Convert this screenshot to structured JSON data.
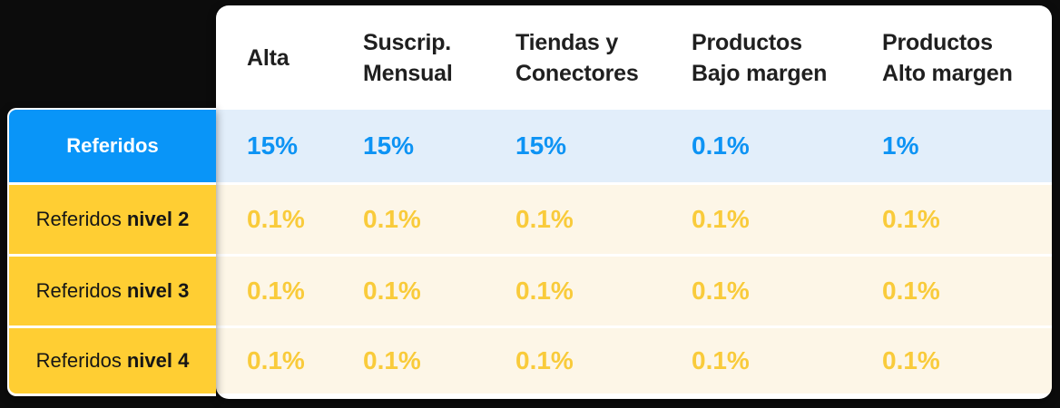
{
  "chart_data": {
    "type": "table",
    "title": "",
    "columns": [
      "Alta",
      "Suscrip. Mensual",
      "Tiendas y Conectores",
      "Productos Bajo margen",
      "Productos Alto margen"
    ],
    "rows": [
      {
        "label": "Referidos",
        "values": [
          "15%",
          "15%",
          "15%",
          "0.1%",
          "1%"
        ]
      },
      {
        "label": "Referidos nivel 2",
        "values": [
          "0.1%",
          "0.1%",
          "0.1%",
          "0.1%",
          "0.1%"
        ]
      },
      {
        "label": "Referidos nivel 3",
        "values": [
          "0.1%",
          "0.1%",
          "0.1%",
          "0.1%",
          "0.1%"
        ]
      },
      {
        "label": "Referidos nivel 4",
        "values": [
          "0.1%",
          "0.1%",
          "0.1%",
          "0.1%",
          "0.1%"
        ]
      }
    ]
  },
  "ui": {
    "columns": [
      {
        "line1": "Alta",
        "line2": ""
      },
      {
        "line1": "Suscrip.",
        "line2": "Mensual"
      },
      {
        "line1": "Tiendas y",
        "line2": "Conectores"
      },
      {
        "line1": "Productos",
        "line2": "Bajo margen"
      },
      {
        "line1": "Productos",
        "line2": "Alto margen"
      }
    ],
    "row_labels": [
      {
        "prefix": "",
        "bold": "Referidos"
      },
      {
        "prefix": "Referidos",
        "bold": "nivel 2"
      },
      {
        "prefix": "Referidos",
        "bold": "nivel 3"
      },
      {
        "prefix": "Referidos",
        "bold": "nivel 4"
      }
    ]
  },
  "colors": {
    "bg": "#0c0c0c",
    "panel": "#ffffff",
    "blue": "#0995f8",
    "blue-text": "#0d93f4",
    "blue-band": "#e2eefa",
    "yellow": "#ffce33",
    "yellow-text": "#f9cb3b",
    "cream-band": "#fdf6e7",
    "header-text": "#1f1f1f",
    "label-text": "#161616"
  }
}
